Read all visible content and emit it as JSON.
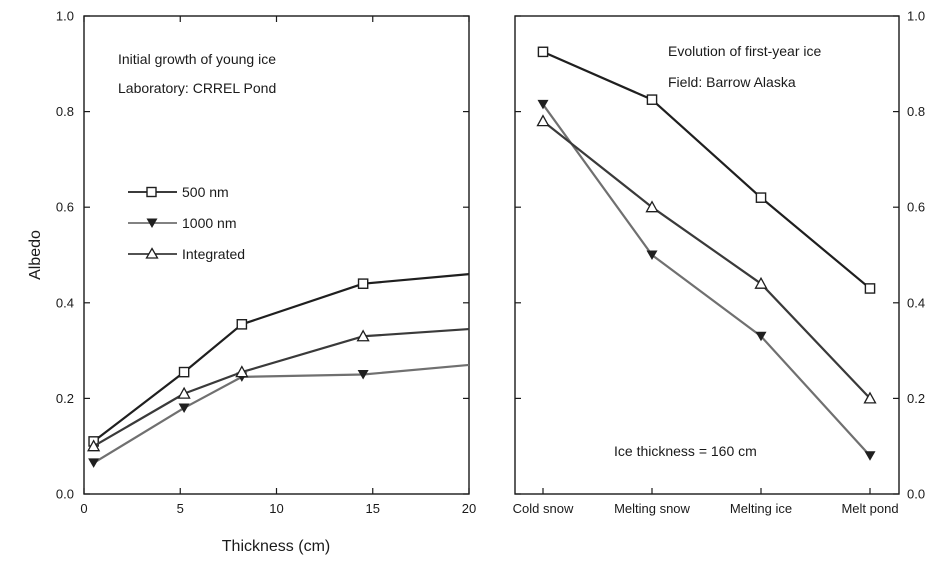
{
  "chart_data": [
    {
      "type": "line",
      "panel": "left",
      "ylabel": "Albedo",
      "xlabel": "Thickness (cm)",
      "xlim": [
        0,
        20
      ],
      "ylim": [
        0,
        1.0
      ],
      "x_ticks": [
        "0",
        "5",
        "10",
        "15",
        "20"
      ],
      "y_ticks": [
        "0.0",
        "0.2",
        "0.4",
        "0.6",
        "0.8",
        "1.0"
      ],
      "annotations": [
        "Initial growth of young ice",
        "Laboratory:  CRREL Pond"
      ],
      "legend_position": "middle-left",
      "series": [
        {
          "name": "500 nm",
          "marker": "open-square",
          "color": "#1f1f1f",
          "x": [
            0.5,
            5.2,
            8.2,
            14.5,
            20
          ],
          "y": [
            0.11,
            0.255,
            0.355,
            0.44,
            0.46
          ],
          "marker_mask": [
            true,
            true,
            true,
            true,
            false
          ]
        },
        {
          "name": "1000 nm",
          "marker": "filled-triangle-down",
          "color": "#707070",
          "x": [
            0.5,
            5.2,
            8.2,
            14.5,
            20
          ],
          "y": [
            0.065,
            0.18,
            0.245,
            0.25,
            0.27
          ],
          "marker_mask": [
            true,
            true,
            true,
            true,
            false
          ]
        },
        {
          "name": "Integrated",
          "marker": "open-triangle-up",
          "color": "#3a3a3a",
          "x": [
            0.5,
            5.2,
            8.2,
            14.5,
            20
          ],
          "y": [
            0.1,
            0.21,
            0.255,
            0.33,
            0.345
          ],
          "marker_mask": [
            true,
            true,
            true,
            true,
            false
          ]
        }
      ]
    },
    {
      "type": "line",
      "panel": "right",
      "categories": [
        "Cold snow",
        "Melting snow",
        "Melting ice",
        "Melt pond"
      ],
      "ylim": [
        0,
        1.0
      ],
      "y_ticks": [
        "0.0",
        "0.2",
        "0.4",
        "0.6",
        "0.8",
        "1.0"
      ],
      "annotations": [
        "Evolution of first-year ice",
        "Field: Barrow Alaska",
        "Ice thickness = 160 cm"
      ],
      "series": [
        {
          "marker": "open-square",
          "color": "#1f1f1f",
          "values": [
            0.925,
            0.825,
            0.62,
            0.43
          ]
        },
        {
          "marker": "filled-triangle-down",
          "color": "#707070",
          "values": [
            0.815,
            0.5,
            0.33,
            0.08
          ]
        },
        {
          "marker": "open-triangle-up",
          "color": "#3a3a3a",
          "values": [
            0.78,
            0.6,
            0.44,
            0.2
          ]
        }
      ]
    }
  ]
}
